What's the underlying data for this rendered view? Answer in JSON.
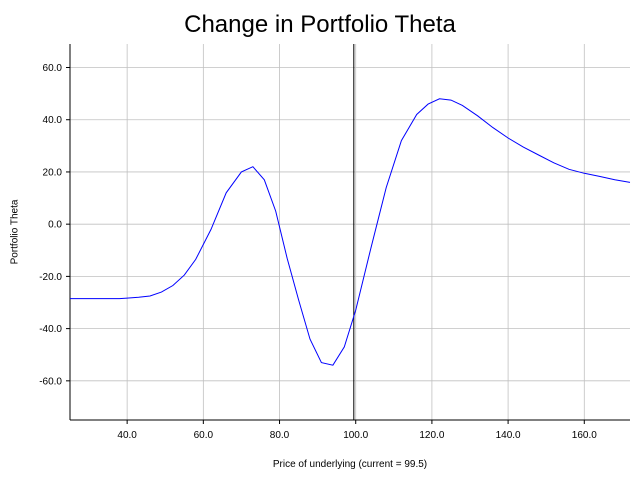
{
  "chart_data": {
    "type": "line",
    "title": "Change in Portfolio Theta",
    "xlabel": "Price of underlying (current = 99.5)",
    "ylabel": "Portfolio Theta",
    "xlim": [
      25,
      172
    ],
    "ylim": [
      -75,
      69
    ],
    "x_ticks": [
      40,
      60,
      80,
      100,
      120,
      140,
      160
    ],
    "y_ticks": [
      -60,
      -40,
      -20,
      0,
      20,
      40,
      60
    ],
    "x_tick_labels": [
      "40.0",
      "60.0",
      "80.0",
      "100.0",
      "120.0",
      "140.0",
      "160.0"
    ],
    "y_tick_labels": [
      "-60.0",
      "-40.0",
      "-20.0",
      "0.0",
      "20.0",
      "40.0",
      "60.0"
    ],
    "grid": true,
    "colors": {
      "series": "#0000ff",
      "reference_line": "#000000",
      "grid": "#c0c0c0"
    },
    "reference_line_x": 99.5,
    "series": [
      {
        "x": [
          25,
          30,
          35,
          38,
          40,
          43,
          46,
          49,
          52,
          55,
          58,
          62,
          66,
          70,
          73,
          76,
          79,
          82,
          85,
          88,
          91,
          94,
          97,
          100,
          104,
          108,
          112,
          116,
          119,
          122,
          125,
          128,
          132,
          136,
          140,
          144,
          148,
          152,
          156,
          160,
          164,
          168,
          172
        ],
        "y": [
          -28.5,
          -28.5,
          -28.5,
          -28.5,
          -28.3,
          -28,
          -27.5,
          -26,
          -23.5,
          -19.5,
          -13.5,
          -2,
          12,
          20,
          22,
          17,
          5,
          -13,
          -29,
          -44,
          -53,
          -54,
          -47,
          -33,
          -9,
          14,
          32,
          42,
          46,
          48,
          47.5,
          45.5,
          41.5,
          37,
          33,
          29.5,
          26.5,
          23.5,
          21,
          19.5,
          18.3,
          17,
          16
        ]
      }
    ]
  }
}
